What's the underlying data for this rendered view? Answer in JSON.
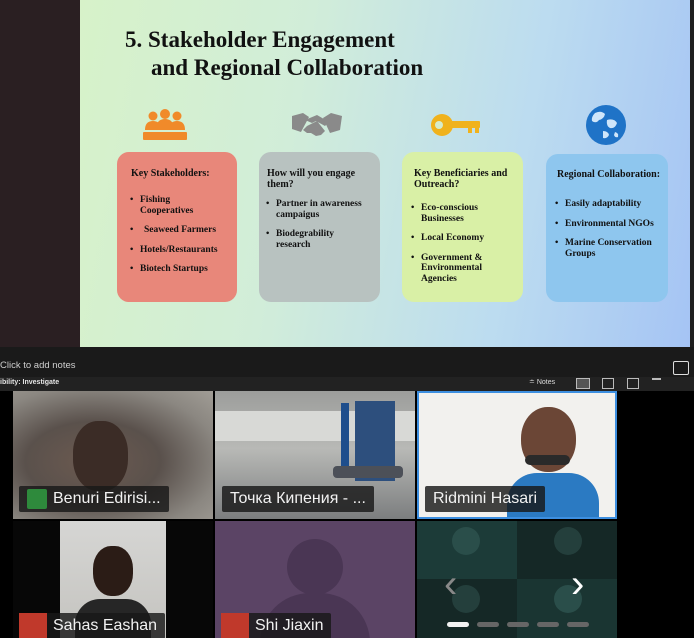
{
  "slide": {
    "title_line1": "5. Stakeholder Engagement",
    "title_line2": "and Regional Collaboration",
    "cards": [
      {
        "heading": "Key Stakeholders:",
        "items": [
          "Fishing Cooperatives",
          "Seaweed Farmers",
          "Hotels/Restaurants",
          "Biotech Startups"
        ],
        "color": "#e8877a",
        "icon": "team-icon"
      },
      {
        "heading": "How will you engage them?",
        "items": [
          "Partner in awareness campaigus",
          "Biodegrability research"
        ],
        "color": "#b8c2c0",
        "icon": "handshake-icon"
      },
      {
        "heading": "Key Beneficiaries and Outreach?",
        "items": [
          "Eco-conscious Businesses",
          "Local Economy",
          "Government & Environmental Agencies"
        ],
        "color": "#d9f0a6",
        "icon": "key-icon"
      },
      {
        "heading": "Regional Collaboration:",
        "items": [
          "Easily adaptability",
          "Environmental NGOs",
          "Marine Conservation Groups"
        ],
        "color": "#8ec6ee",
        "icon": "globe-icon"
      }
    ]
  },
  "notes_placeholder": "Click to add notes",
  "status_label": "ibility: Investigate",
  "toolbar": {
    "notes_label": "Notes"
  },
  "participants": [
    {
      "name": "Benuri Edirisi...",
      "status": "screen-share"
    },
    {
      "name": "Точка Кипения - ...",
      "status": "video"
    },
    {
      "name": "Ridmini Hasari",
      "status": "active-speaker"
    },
    {
      "name": "Sahas Eashan",
      "status": "muted"
    },
    {
      "name": "Shi Jiaxin",
      "status": "muted"
    }
  ],
  "pagination": {
    "pages": 5,
    "current": 1
  }
}
